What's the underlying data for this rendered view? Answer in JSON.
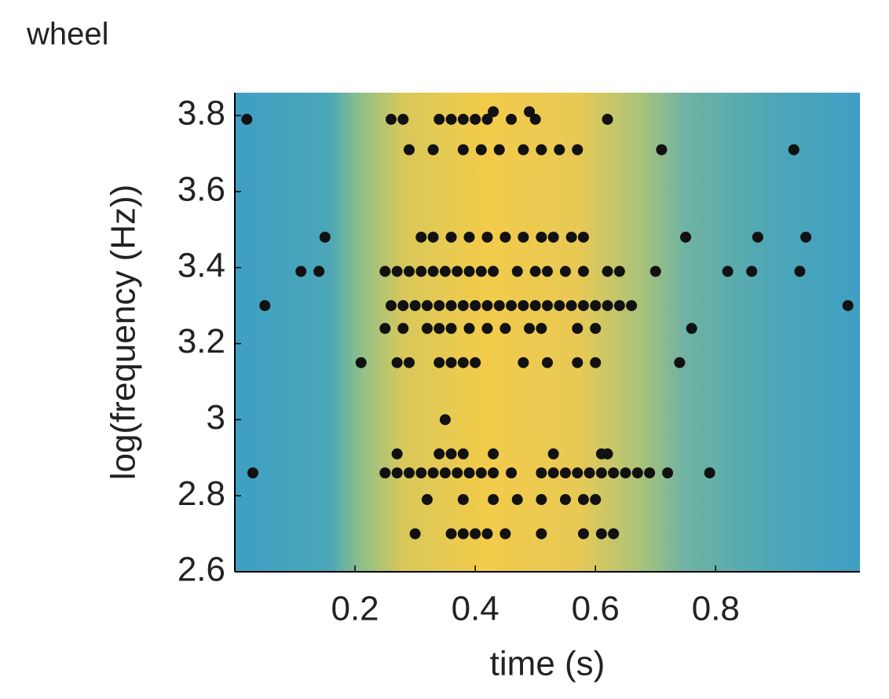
{
  "chart_data": {
    "type": "scatter",
    "title": "wheel",
    "xlabel": "time (s)",
    "ylabel": "log(frequency (Hz))",
    "xlim": [
      0,
      1.04
    ],
    "ylim": [
      2.6,
      3.86
    ],
    "xticks": [
      0.2,
      0.4,
      0.6,
      0.8
    ],
    "yticks": [
      2.6,
      2.8,
      3,
      3.2,
      3.4,
      3.6,
      3.8
    ],
    "color": "#111111",
    "x": [
      0.02,
      0.26,
      0.28,
      0.34,
      0.36,
      0.38,
      0.4,
      0.42,
      0.46,
      0.5,
      0.62,
      0.43,
      0.49,
      0.29,
      0.33,
      0.38,
      0.41,
      0.44,
      0.48,
      0.51,
      0.54,
      0.57,
      0.71,
      0.93,
      0.15,
      0.31,
      0.33,
      0.36,
      0.39,
      0.42,
      0.45,
      0.48,
      0.51,
      0.53,
      0.56,
      0.58,
      0.75,
      0.87,
      0.95,
      0.11,
      0.14,
      0.25,
      0.27,
      0.29,
      0.31,
      0.33,
      0.35,
      0.37,
      0.39,
      0.41,
      0.43,
      0.47,
      0.5,
      0.52,
      0.55,
      0.58,
      0.62,
      0.64,
      0.7,
      0.82,
      0.86,
      0.94,
      0.05,
      0.26,
      0.28,
      0.3,
      0.32,
      0.34,
      0.36,
      0.38,
      0.4,
      0.42,
      0.44,
      0.46,
      0.48,
      0.5,
      0.52,
      0.54,
      0.56,
      0.58,
      0.6,
      0.62,
      0.64,
      0.66,
      1.02,
      0.25,
      0.28,
      0.32,
      0.34,
      0.36,
      0.39,
      0.42,
      0.45,
      0.49,
      0.51,
      0.57,
      0.6,
      0.76,
      0.21,
      0.27,
      0.29,
      0.34,
      0.36,
      0.38,
      0.4,
      0.48,
      0.52,
      0.57,
      0.6,
      0.74,
      0.35,
      0.27,
      0.34,
      0.36,
      0.38,
      0.43,
      0.53,
      0.61,
      0.62,
      0.03,
      0.25,
      0.27,
      0.29,
      0.31,
      0.33,
      0.35,
      0.37,
      0.39,
      0.41,
      0.43,
      0.46,
      0.51,
      0.53,
      0.55,
      0.57,
      0.59,
      0.61,
      0.63,
      0.65,
      0.67,
      0.69,
      0.72,
      0.79,
      0.32,
      0.38,
      0.43,
      0.47,
      0.51,
      0.55,
      0.58,
      0.6,
      0.3,
      0.36,
      0.38,
      0.4,
      0.42,
      0.45,
      0.51,
      0.58,
      0.61,
      0.63
    ],
    "values": [
      3.79,
      3.79,
      3.79,
      3.79,
      3.79,
      3.79,
      3.79,
      3.79,
      3.79,
      3.79,
      3.79,
      3.81,
      3.81,
      3.71,
      3.71,
      3.71,
      3.71,
      3.71,
      3.71,
      3.71,
      3.71,
      3.71,
      3.71,
      3.71,
      3.48,
      3.48,
      3.48,
      3.48,
      3.48,
      3.48,
      3.48,
      3.48,
      3.48,
      3.48,
      3.48,
      3.48,
      3.48,
      3.48,
      3.48,
      3.39,
      3.39,
      3.39,
      3.39,
      3.39,
      3.39,
      3.39,
      3.39,
      3.39,
      3.39,
      3.39,
      3.39,
      3.39,
      3.39,
      3.39,
      3.39,
      3.39,
      3.39,
      3.39,
      3.39,
      3.39,
      3.39,
      3.39,
      3.3,
      3.3,
      3.3,
      3.3,
      3.3,
      3.3,
      3.3,
      3.3,
      3.3,
      3.3,
      3.3,
      3.3,
      3.3,
      3.3,
      3.3,
      3.3,
      3.3,
      3.3,
      3.3,
      3.3,
      3.3,
      3.3,
      3.3,
      3.24,
      3.24,
      3.24,
      3.24,
      3.24,
      3.24,
      3.24,
      3.24,
      3.24,
      3.24,
      3.24,
      3.24,
      3.24,
      3.15,
      3.15,
      3.15,
      3.15,
      3.15,
      3.15,
      3.15,
      3.15,
      3.15,
      3.15,
      3.15,
      3.15,
      3,
      2.91,
      2.91,
      2.91,
      2.91,
      2.91,
      2.91,
      2.91,
      2.91,
      2.86,
      2.86,
      2.86,
      2.86,
      2.86,
      2.86,
      2.86,
      2.86,
      2.86,
      2.86,
      2.86,
      2.86,
      2.86,
      2.86,
      2.86,
      2.86,
      2.86,
      2.86,
      2.86,
      2.86,
      2.86,
      2.86,
      2.86,
      2.86,
      2.79,
      2.79,
      2.79,
      2.79,
      2.79,
      2.79,
      2.79,
      2.79,
      2.7,
      2.7,
      2.7,
      2.7,
      2.7,
      2.7,
      2.7,
      2.7,
      2.7,
      2.7
    ]
  }
}
